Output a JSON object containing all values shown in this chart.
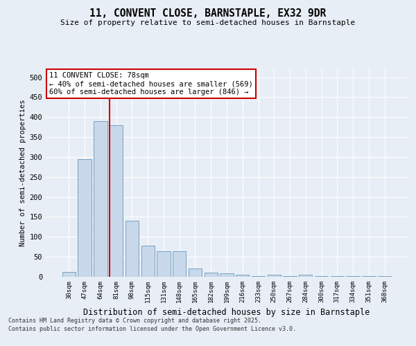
{
  "title": "11, CONVENT CLOSE, BARNSTAPLE, EX32 9DR",
  "subtitle": "Size of property relative to semi-detached houses in Barnstaple",
  "xlabel": "Distribution of semi-detached houses by size in Barnstaple",
  "ylabel": "Number of semi-detached properties",
  "categories": [
    "30sqm",
    "47sqm",
    "64sqm",
    "81sqm",
    "98sqm",
    "115sqm",
    "131sqm",
    "148sqm",
    "165sqm",
    "182sqm",
    "199sqm",
    "216sqm",
    "233sqm",
    "250sqm",
    "267sqm",
    "284sqm",
    "300sqm",
    "317sqm",
    "334sqm",
    "351sqm",
    "368sqm"
  ],
  "values": [
    12,
    295,
    390,
    380,
    140,
    78,
    65,
    65,
    20,
    11,
    8,
    6,
    2,
    5,
    1,
    5,
    1,
    1,
    1,
    1,
    1
  ],
  "bar_color": "#c8d8ea",
  "bar_edge_color": "#6699bb",
  "background_color": "#e8eef5",
  "grid_color": "#ffffff",
  "vline_index": 2.58,
  "vline_color": "#cc0000",
  "annotation_text": "11 CONVENT CLOSE: 78sqm\n← 40% of semi-detached houses are smaller (569)\n60% of semi-detached houses are larger (846) →",
  "annotation_box_facecolor": "#ffffff",
  "annotation_box_edgecolor": "#cc0000",
  "footer_line1": "Contains HM Land Registry data © Crown copyright and database right 2025.",
  "footer_line2": "Contains public sector information licensed under the Open Government Licence v3.0.",
  "ylim": [
    0,
    520
  ],
  "yticks": [
    0,
    50,
    100,
    150,
    200,
    250,
    300,
    350,
    400,
    450,
    500
  ]
}
